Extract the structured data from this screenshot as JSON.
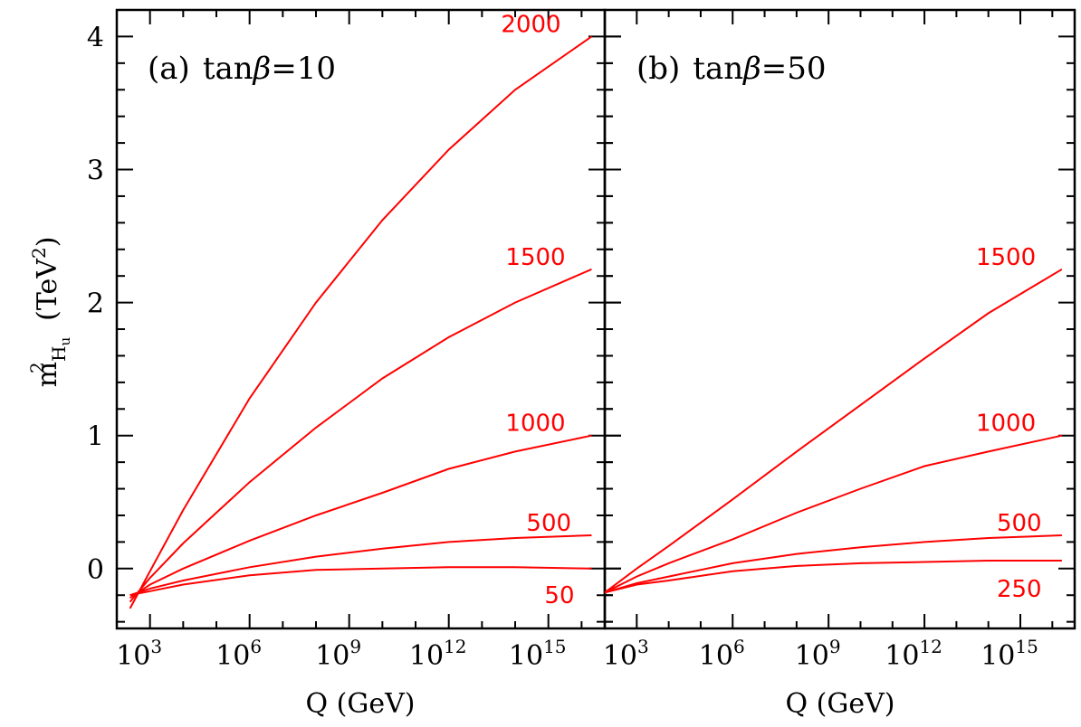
{
  "y_axis_label": {
    "main": "m",
    "sup": "2",
    "sub_main": "H",
    "sub_sub": "u",
    "units_open": "(TeV",
    "units_sup": "2",
    "units_close": ")"
  },
  "colors": {
    "curves": "#ff0000",
    "axes": "#000000"
  },
  "chart_data": [
    {
      "type": "line",
      "panel_label": "(a)",
      "title_prefix": "tan",
      "title_greek": "β",
      "title_value": "=10",
      "xlabel": "Q (GeV)",
      "x_scale": "log",
      "xlim": [
        100,
        5e+16
      ],
      "ylim": [
        -0.45,
        4.2
      ],
      "xtick_exponents": [
        3,
        6,
        9,
        12,
        15
      ],
      "yticks": [
        0,
        1,
        2,
        3,
        4
      ],
      "series": [
        {
          "name": "2000",
          "x": [
            250,
            1000.0,
            10000.0,
            1000000.0,
            100000000.0,
            10000000000.0,
            1000000000000.0,
            100000000000000.0,
            2e+16
          ],
          "y": [
            -0.3,
            -0.02,
            0.44,
            1.28,
            2.0,
            2.62,
            3.15,
            3.6,
            4.0
          ]
        },
        {
          "name": "1500",
          "x": [
            250,
            1000.0,
            10000.0,
            1000000.0,
            100000000.0,
            10000000000.0,
            1000000000000.0,
            100000000000000.0,
            2e+16
          ],
          "y": [
            -0.25,
            -0.07,
            0.19,
            0.65,
            1.06,
            1.43,
            1.74,
            2.0,
            2.25
          ]
        },
        {
          "name": "1000",
          "x": [
            250,
            1000.0,
            10000.0,
            1000000.0,
            100000000.0,
            10000000000.0,
            1000000000000.0,
            100000000000000.0,
            2e+16
          ],
          "y": [
            -0.22,
            -0.12,
            0.0,
            0.21,
            0.4,
            0.57,
            0.75,
            0.88,
            1.0
          ]
        },
        {
          "name": "500",
          "x": [
            250,
            1000.0,
            10000.0,
            1000000.0,
            100000000.0,
            10000000000.0,
            1000000000000.0,
            100000000000000.0,
            2e+16
          ],
          "y": [
            -0.2,
            -0.15,
            -0.09,
            0.01,
            0.09,
            0.15,
            0.2,
            0.23,
            0.25
          ]
        },
        {
          "name": "50",
          "x": [
            250,
            1000.0,
            10000.0,
            1000000.0,
            100000000.0,
            10000000000.0,
            1000000000000.0,
            100000000000000.0,
            2e+16
          ],
          "y": [
            -0.2,
            -0.17,
            -0.12,
            -0.05,
            -0.01,
            0.0,
            0.01,
            0.01,
            0.0
          ]
        }
      ]
    },
    {
      "type": "line",
      "panel_label": "(b)",
      "title_prefix": "tan",
      "title_greek": "β",
      "title_value": "=50",
      "xlabel": "Q (GeV)",
      "x_scale": "log",
      "xlim": [
        100,
        5e+16
      ],
      "ylim": [
        -0.45,
        4.2
      ],
      "xtick_exponents": [
        3,
        6,
        9,
        12,
        15
      ],
      "yticks": [
        0,
        1,
        2,
        3,
        4
      ],
      "series": [
        {
          "name": "1500",
          "x": [
            100,
            1000.0,
            10000.0,
            1000000.0,
            100000000.0,
            10000000000.0,
            1000000000000.0,
            100000000000000.0,
            2e+16
          ],
          "y": [
            -0.18,
            0.0,
            0.17,
            0.52,
            0.88,
            1.23,
            1.58,
            1.92,
            2.25
          ]
        },
        {
          "name": "1000",
          "x": [
            100,
            1000.0,
            10000.0,
            1000000.0,
            100000000.0,
            10000000000.0,
            1000000000000.0,
            100000000000000.0,
            2e+16
          ],
          "y": [
            -0.18,
            -0.06,
            0.04,
            0.22,
            0.42,
            0.6,
            0.77,
            0.88,
            1.0
          ]
        },
        {
          "name": "500",
          "x": [
            100,
            1000.0,
            10000.0,
            1000000.0,
            100000000.0,
            10000000000.0,
            1000000000000.0,
            100000000000000.0,
            2e+16
          ],
          "y": [
            -0.18,
            -0.11,
            -0.06,
            0.04,
            0.11,
            0.16,
            0.2,
            0.23,
            0.25
          ]
        },
        {
          "name": "250",
          "x": [
            100,
            1000.0,
            10000.0,
            1000000.0,
            100000000.0,
            10000000000.0,
            1000000000000.0,
            100000000000000.0,
            2e+16
          ],
          "y": [
            -0.18,
            -0.12,
            -0.09,
            -0.02,
            0.02,
            0.04,
            0.05,
            0.06,
            0.06
          ]
        }
      ]
    }
  ]
}
